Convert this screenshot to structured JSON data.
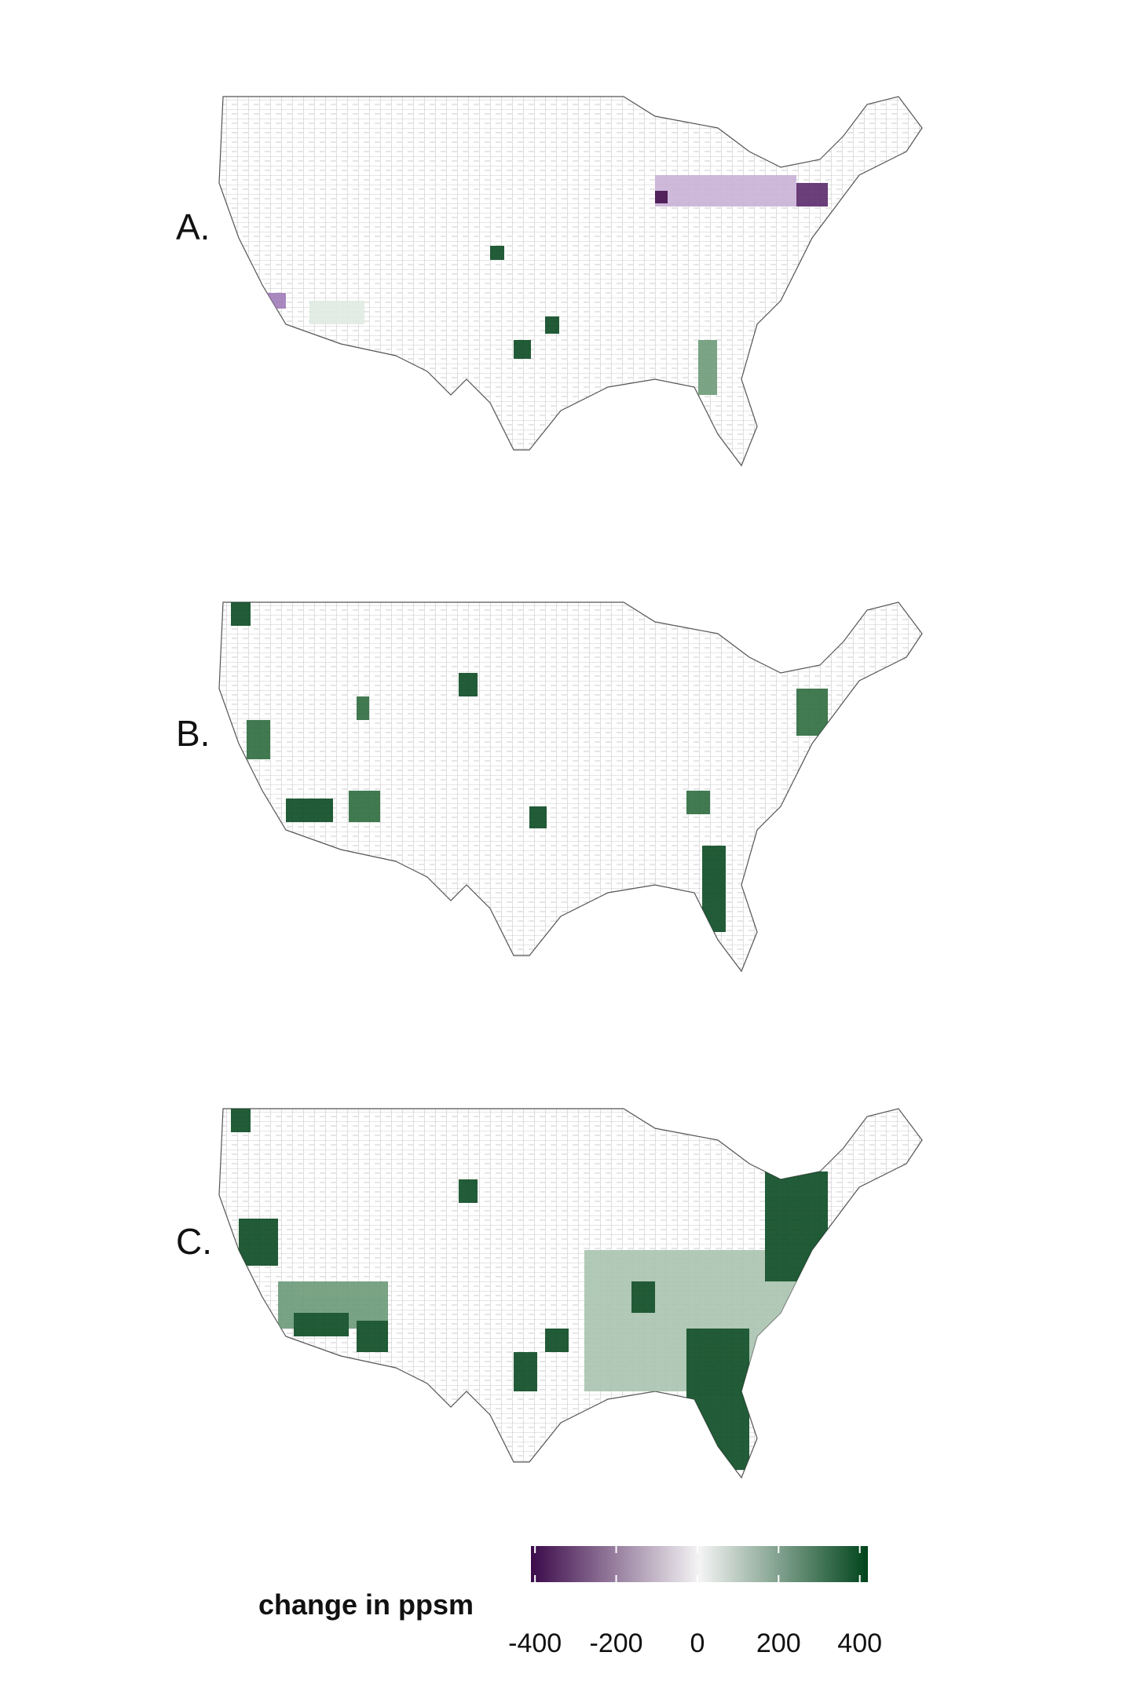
{
  "panels": [
    {
      "label": "A."
    },
    {
      "label": "B."
    },
    {
      "label": "C."
    }
  ],
  "legend": {
    "title": "change in ppsm",
    "lim": [
      -410,
      420
    ],
    "ticks": [
      -400,
      -200,
      0,
      200,
      400
    ],
    "colors": [
      "#3b0a4a",
      "#f4f4f4",
      "#00441b"
    ]
  }
}
